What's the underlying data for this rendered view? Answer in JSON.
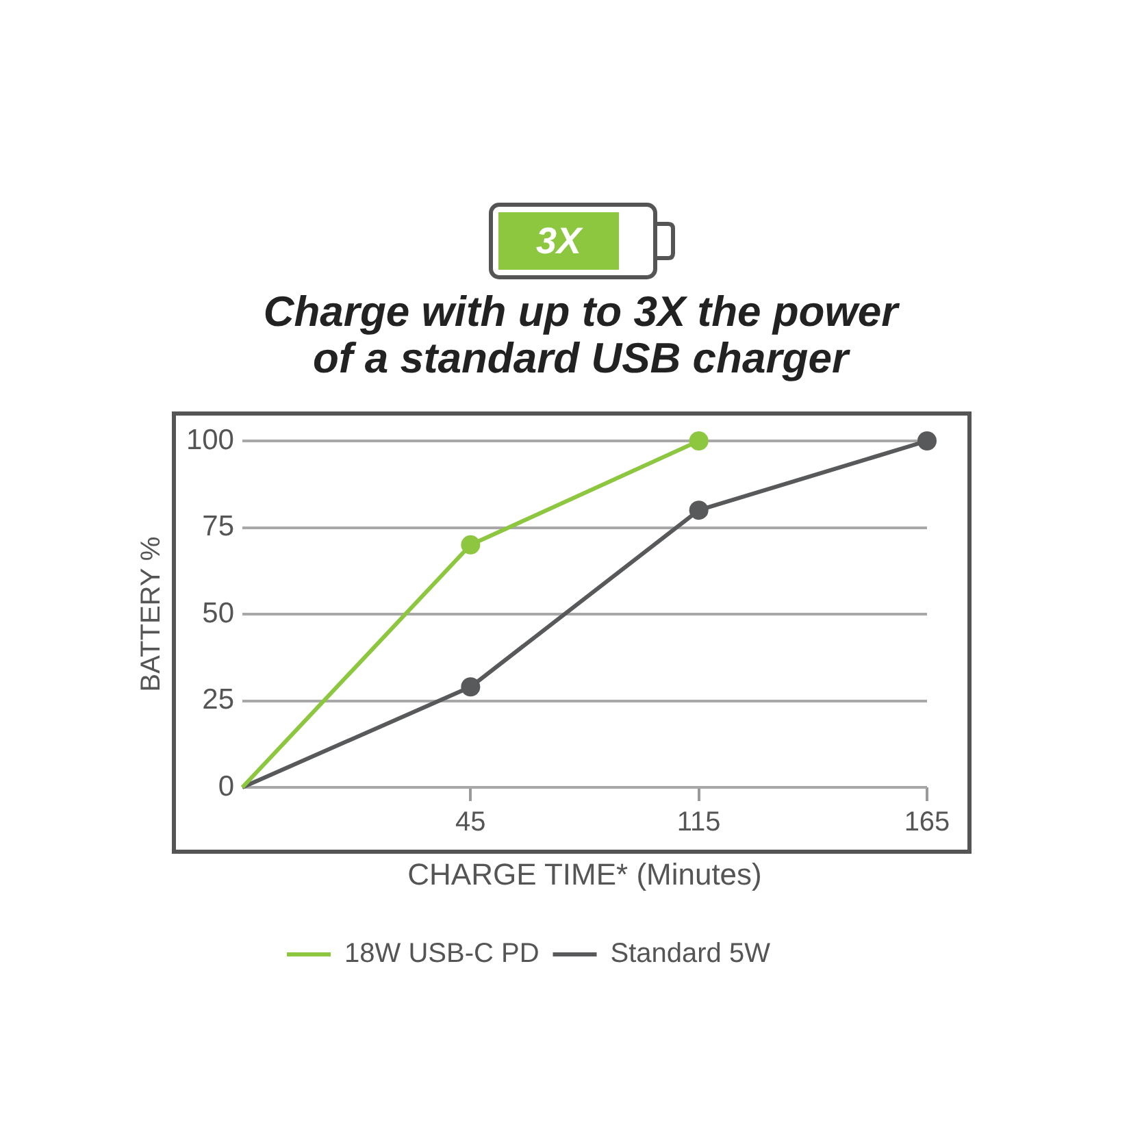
{
  "chart_data": {
    "type": "line",
    "title": "Charge with up to 3X the power of a standard USB charger",
    "xlabel": "CHARGE TIME* (Minutes)",
    "ylabel": "BATTERY %",
    "annotations": [
      "3X"
    ],
    "categories": [
      null,
      "45",
      "115",
      "165"
    ],
    "series": [
      {
        "name": "18W USB-C PD",
        "color": "#8dc63f",
        "values": [
          0,
          70,
          100,
          null
        ]
      },
      {
        "name": "Standard 5W",
        "color": "#58595b",
        "values": [
          0,
          29,
          80,
          100
        ]
      }
    ],
    "ylim": [
      0,
      100
    ],
    "yticks": [
      0,
      25,
      50,
      75,
      100
    ],
    "grid": "y",
    "legend": "bottom",
    "marker": "circle",
    "line_style": "solid"
  }
}
